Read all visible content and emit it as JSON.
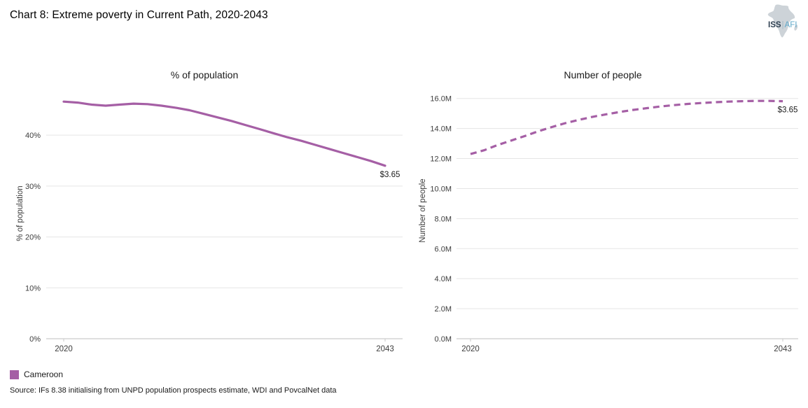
{
  "page": {
    "title": "Chart 8: Extreme poverty in Current Path, 2020-2043",
    "source": "Source: IFs 8.38 initialising from UNPD population prospects estimate, WDI and PovcalNet data"
  },
  "logo": {
    "text_primary": "ISS",
    "text_secondary": "AFI",
    "icon": "africa-silhouette",
    "color_primary": "#2d3e50",
    "color_secondary": "#5fa8c9",
    "silhouette_color": "#cdd3d8"
  },
  "legend": {
    "items": [
      {
        "label": "Cameroon",
        "color": "#a55fa5"
      }
    ]
  },
  "chart_data": [
    {
      "type": "line",
      "title": "% of population",
      "ylabel": "% of population",
      "xlabel": "",
      "grid": "horizontal",
      "legend_position": "shared-bottom",
      "x": [
        2020,
        2021,
        2022,
        2023,
        2024,
        2025,
        2026,
        2027,
        2028,
        2029,
        2030,
        2031,
        2032,
        2033,
        2034,
        2035,
        2036,
        2037,
        2038,
        2039,
        2040,
        2041,
        2042,
        2043
      ],
      "xtick_values": [
        2020,
        2043
      ],
      "xtick_labels": [
        "2020",
        "2043"
      ],
      "ytick_values": [
        0,
        10,
        20,
        30,
        40
      ],
      "ytick_labels": [
        "0%",
        "10%",
        "20%",
        "30%",
        "40%"
      ],
      "ylim": [
        0,
        48
      ],
      "series": [
        {
          "name": "Cameroon",
          "color": "#a55fa5",
          "line_style": "solid",
          "end_label": "$3.65",
          "values": [
            46.6,
            46.4,
            46.0,
            45.8,
            46.0,
            46.2,
            46.1,
            45.8,
            45.4,
            44.9,
            44.2,
            43.5,
            42.8,
            42.0,
            41.2,
            40.4,
            39.6,
            38.9,
            38.1,
            37.3,
            36.5,
            35.7,
            34.9,
            34.0
          ]
        }
      ]
    },
    {
      "type": "line",
      "title": "Number of people",
      "ylabel": "Number of people",
      "xlabel": "",
      "grid": "horizontal",
      "legend_position": "shared-bottom",
      "x": [
        2020,
        2021,
        2022,
        2023,
        2024,
        2025,
        2026,
        2027,
        2028,
        2029,
        2030,
        2031,
        2032,
        2033,
        2034,
        2035,
        2036,
        2037,
        2038,
        2039,
        2040,
        2041,
        2042,
        2043
      ],
      "xtick_values": [
        2020,
        2043
      ],
      "xtick_labels": [
        "2020",
        "2043"
      ],
      "ytick_values": [
        0,
        2,
        4,
        6,
        8,
        10,
        12,
        14,
        16
      ],
      "ytick_labels": [
        "0.0M",
        "2.0M",
        "4.0M",
        "6.0M",
        "8.0M",
        "10.0M",
        "12.0M",
        "14.0M",
        "16.0M"
      ],
      "ylim": [
        0,
        16.5
      ],
      "series": [
        {
          "name": "Cameroon",
          "color": "#a55fa5",
          "line_style": "dashed",
          "end_label": "$3.65",
          "values": [
            12.3,
            12.55,
            12.9,
            13.2,
            13.5,
            13.82,
            14.1,
            14.36,
            14.58,
            14.78,
            14.95,
            15.1,
            15.24,
            15.36,
            15.47,
            15.56,
            15.64,
            15.7,
            15.75,
            15.79,
            15.82,
            15.84,
            15.84,
            15.82
          ]
        }
      ]
    }
  ]
}
